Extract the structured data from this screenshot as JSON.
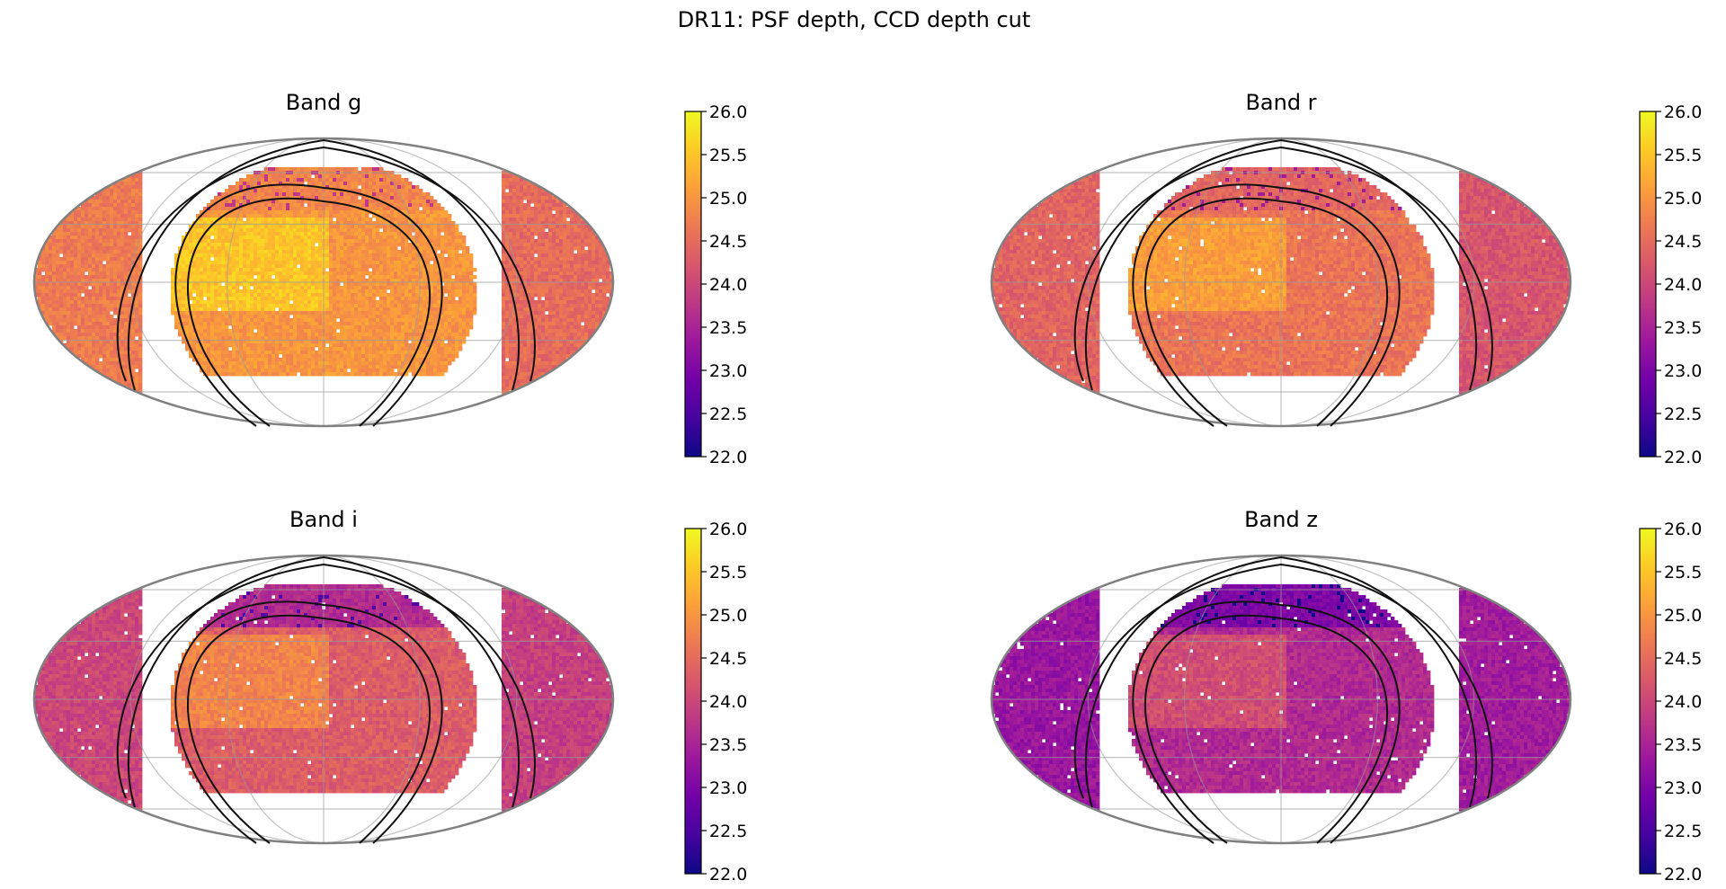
{
  "figure": {
    "title": "DR11: PSF depth, CCD depth cut"
  },
  "colormap": {
    "name": "plasma",
    "stops": [
      "#0d0887",
      "#46039f",
      "#7201a8",
      "#9c179e",
      "#bd3786",
      "#d8576b",
      "#ed7953",
      "#fb9f3a",
      "#fdca26",
      "#f0f921"
    ]
  },
  "chart_data": [
    {
      "type": "heatmap",
      "projection": "mollweide",
      "title": "Band g",
      "colorbar": {
        "range": [
          22.0,
          26.0
        ],
        "ticks": [
          22.0,
          22.5,
          23.0,
          23.5,
          24.0,
          24.5,
          25.0,
          25.5,
          26.0
        ],
        "tick_labels": [
          "22.0",
          "22.5",
          "23.0",
          "23.5",
          "24.0",
          "24.5",
          "25.0",
          "25.5",
          "26.0"
        ]
      },
      "median_depth": 24.9,
      "region_depths": {
        "west_cap": 24.7,
        "south_footprint": 25.0,
        "deep_block": 25.5,
        "east_edge": 24.5,
        "north_ring": 24.8
      }
    },
    {
      "type": "heatmap",
      "projection": "mollweide",
      "title": "Band r",
      "colorbar": {
        "range": [
          22.0,
          26.0
        ],
        "ticks": [
          22.0,
          22.5,
          23.0,
          23.5,
          24.0,
          24.5,
          25.0,
          25.5,
          26.0
        ],
        "tick_labels": [
          "22.0",
          "22.5",
          "23.0",
          "23.5",
          "24.0",
          "24.5",
          "25.0",
          "25.5",
          "26.0"
        ]
      },
      "median_depth": 24.5,
      "region_depths": {
        "west_cap": 24.4,
        "south_footprint": 24.6,
        "deep_block": 25.1,
        "east_edge": 24.2,
        "north_ring": 24.4
      }
    },
    {
      "type": "heatmap",
      "projection": "mollweide",
      "title": "Band i",
      "colorbar": {
        "range": [
          22.0,
          26.0
        ],
        "ticks": [
          22.0,
          22.5,
          23.0,
          23.5,
          24.0,
          24.5,
          25.0,
          25.5,
          26.0
        ],
        "tick_labels": [
          "22.0",
          "22.5",
          "23.0",
          "23.5",
          "24.0",
          "24.5",
          "25.0",
          "25.5",
          "26.0"
        ]
      },
      "median_depth": 24.2,
      "region_depths": {
        "west_cap": 24.0,
        "south_footprint": 24.3,
        "deep_block": 24.8,
        "east_edge": 23.9,
        "north_ring": 23.6
      }
    },
    {
      "type": "heatmap",
      "projection": "mollweide",
      "title": "Band z",
      "colorbar": {
        "range": [
          22.0,
          26.0
        ],
        "ticks": [
          22.0,
          22.5,
          23.0,
          23.5,
          24.0,
          24.5,
          25.0,
          25.5,
          26.0
        ],
        "tick_labels": [
          "22.0",
          "22.5",
          "23.0",
          "23.5",
          "24.0",
          "24.5",
          "25.0",
          "25.5",
          "26.0"
        ]
      },
      "median_depth": 23.5,
      "region_depths": {
        "west_cap": 23.3,
        "south_footprint": 23.6,
        "deep_block": 24.1,
        "east_edge": 23.4,
        "north_ring": 23.0
      }
    }
  ]
}
